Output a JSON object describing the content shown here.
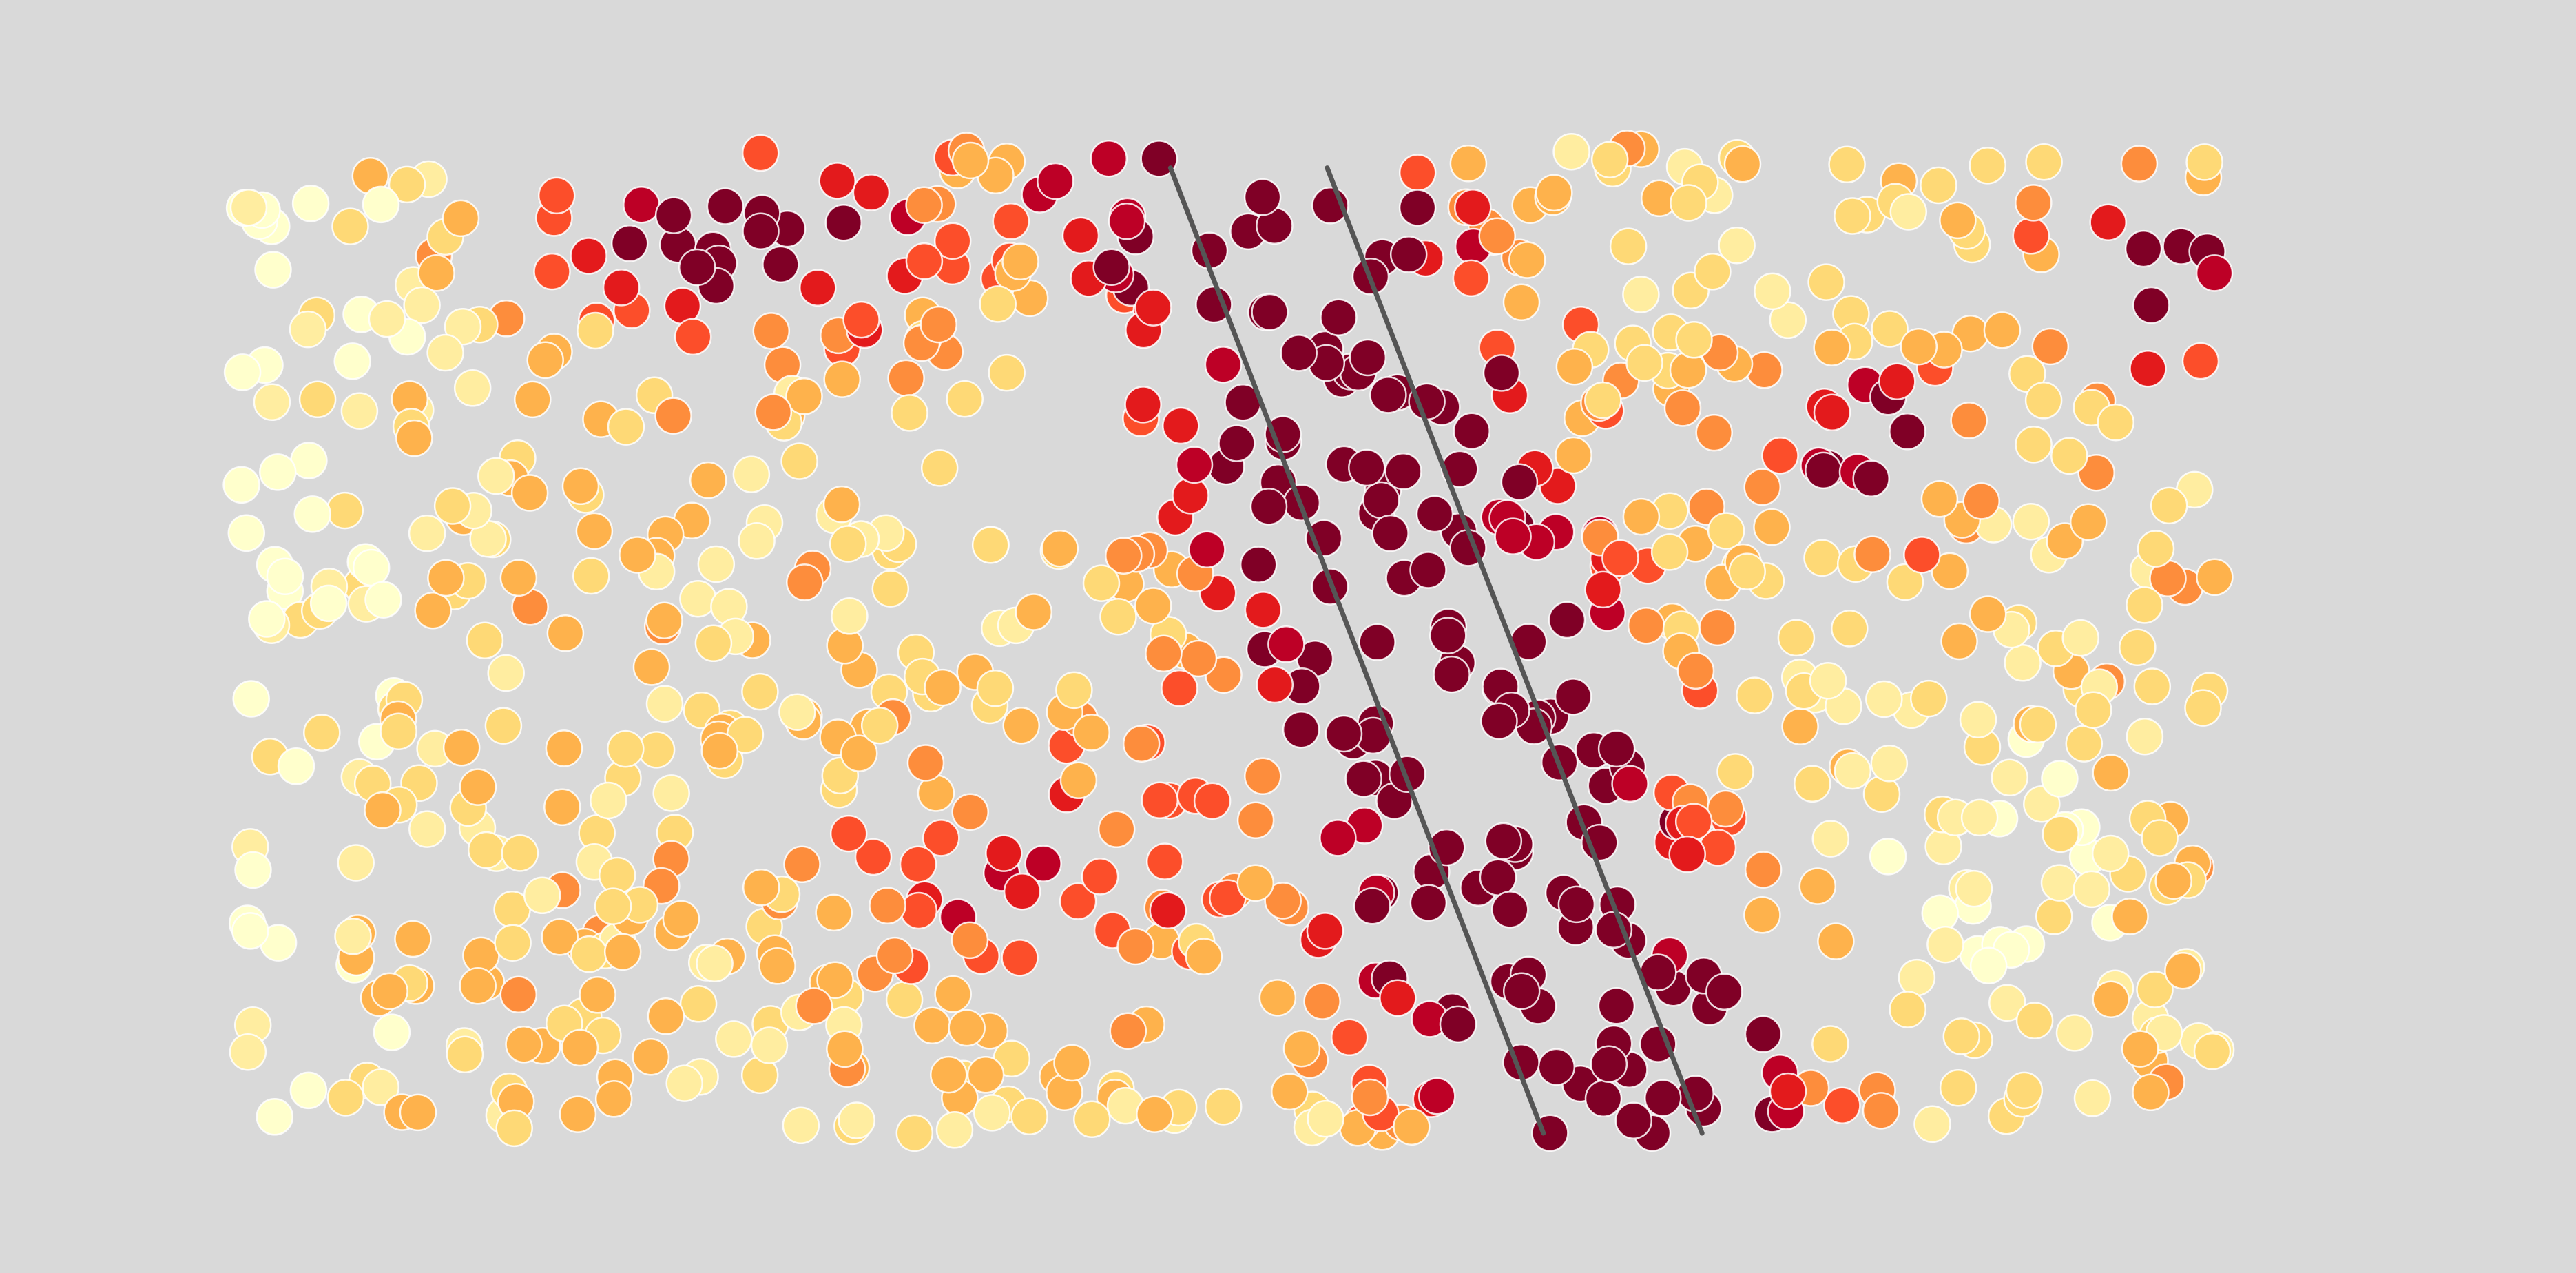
{
  "chart_data": {
    "type": "scatter",
    "title": "",
    "xlabel": "",
    "ylabel": "",
    "axes_visible": false,
    "grid": false,
    "legend": "none",
    "xlim": [
      0,
      1
    ],
    "ylim": [
      0,
      1
    ],
    "colormap": [
      "#ffffcc",
      "#ffeda0",
      "#fed976",
      "#feb24c",
      "#fd8d3c",
      "#fc4e2a",
      "#e31a1c",
      "#bd0026",
      "#800026"
    ],
    "background_color": "#d9d9d9",
    "guide_line_color": "#555555",
    "lines": [
      {
        "x": [
          0.472,
          0.66
        ],
        "y": [
          0.98,
          0.0
        ]
      },
      {
        "x": [
          0.551,
          0.74
        ],
        "y": [
          0.98,
          0.0
        ]
      }
    ],
    "point_count": 950,
    "seed": 12345
  }
}
